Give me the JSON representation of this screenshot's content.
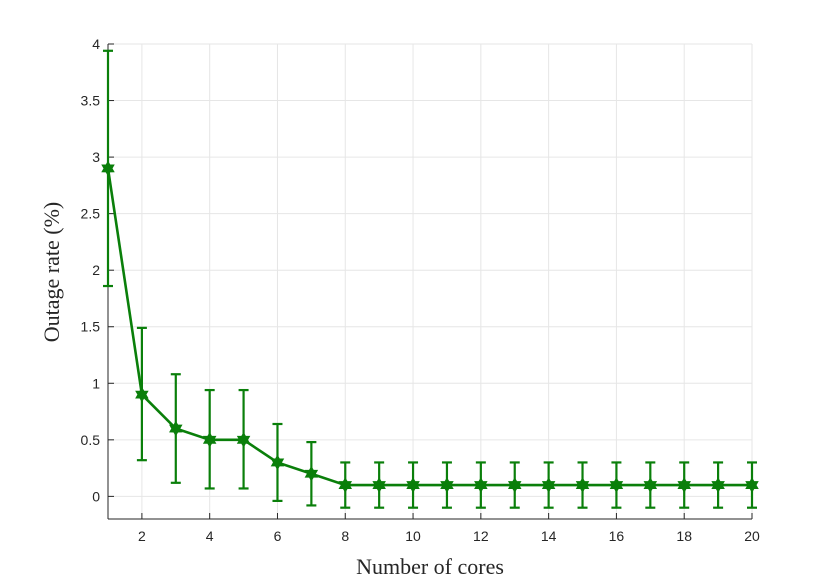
{
  "chart_data": {
    "type": "line",
    "title": "",
    "xlabel": "Number of cores",
    "ylabel": "Outage rate (%)",
    "xlim": [
      1,
      20
    ],
    "ylim": [
      -0.2,
      4
    ],
    "xticks": [
      2,
      4,
      6,
      8,
      10,
      12,
      14,
      16,
      18,
      20
    ],
    "yticks": [
      0,
      0.5,
      1,
      1.5,
      2,
      2.5,
      3,
      3.5,
      4
    ],
    "grid": true,
    "legend": "none",
    "series": [
      {
        "color": "#0a7f0a",
        "marker": "hexagram",
        "x": [
          1,
          2,
          3,
          4,
          5,
          6,
          7,
          8,
          9,
          10,
          11,
          12,
          13,
          14,
          15,
          16,
          17,
          18,
          19,
          20
        ],
        "y": [
          2.9,
          0.9,
          0.6,
          0.5,
          0.5,
          0.3,
          0.2,
          0.1,
          0.1,
          0.1,
          0.1,
          0.1,
          0.1,
          0.1,
          0.1,
          0.1,
          0.1,
          0.1,
          0.1,
          0.1
        ],
        "error_lower": [
          1.86,
          0.32,
          0.12,
          0.07,
          0.07,
          -0.04,
          -0.08,
          -0.1,
          -0.1,
          -0.1,
          -0.1,
          -0.1,
          -0.1,
          -0.1,
          -0.1,
          -0.1,
          -0.1,
          -0.1,
          -0.1,
          -0.1
        ],
        "error_upper": [
          3.94,
          1.49,
          1.08,
          0.94,
          0.94,
          0.64,
          0.48,
          0.3,
          0.3,
          0.3,
          0.3,
          0.3,
          0.3,
          0.3,
          0.3,
          0.3,
          0.3,
          0.3,
          0.3,
          0.3
        ]
      }
    ]
  }
}
